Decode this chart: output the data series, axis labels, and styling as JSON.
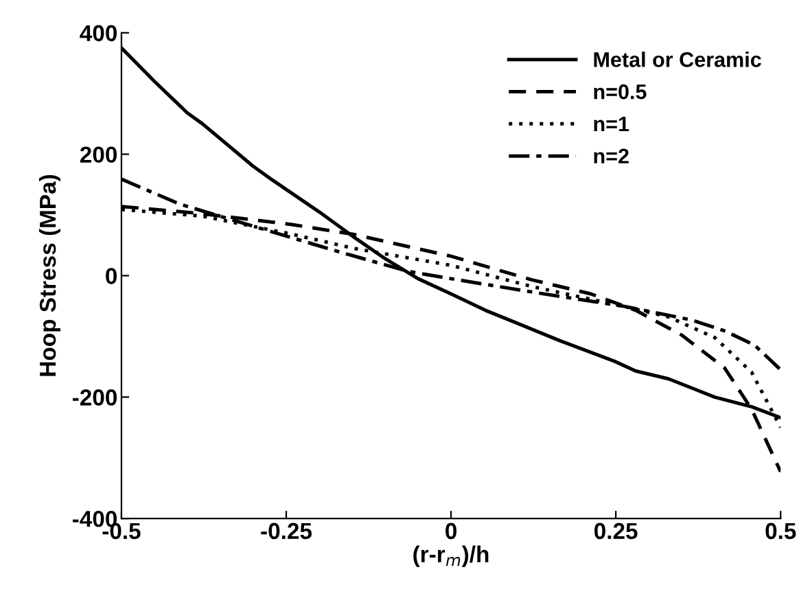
{
  "chart_data": {
    "type": "line",
    "xlabel": "(r-r$_{m}$)/h",
    "ylabel": "Hoop Stress (MPa)",
    "xlim": [
      -0.5,
      0.5
    ],
    "ylim": [
      -400,
      400
    ],
    "xticks": [
      -0.5,
      -0.25,
      0,
      0.25,
      0.5
    ],
    "yticks": [
      -400,
      -200,
      0,
      200,
      400
    ],
    "grid": false,
    "legend": "top right",
    "series": [
      {
        "name": "Metal or Ceramic",
        "color": "#000000",
        "line_style": "solid",
        "x": [
          -0.5,
          -0.45,
          -0.4,
          -0.377,
          -0.3,
          -0.273,
          -0.2,
          -0.148,
          -0.1,
          -0.05,
          0,
          0.052,
          0.165,
          0.248,
          0.28,
          0.33,
          0.4,
          0.456,
          0.5
        ],
        "values": [
          375,
          320,
          268,
          250,
          180,
          159,
          105,
          64,
          28,
          -5,
          -30,
          -57,
          -107,
          -141,
          -157,
          -170,
          -200,
          -216,
          -234
        ]
      },
      {
        "name": "n=0.5",
        "color": "#000000",
        "line_style": "dashed",
        "x": [
          -0.5,
          -0.377,
          -0.24,
          -0.148,
          0,
          0.123,
          0.212,
          0.28,
          0.35,
          0.415,
          0.456,
          0.5
        ],
        "values": [
          114,
          102,
          84,
          68,
          32,
          -7,
          -30,
          -57,
          -98,
          -152,
          -220,
          -323
        ]
      },
      {
        "name": "n=1",
        "color": "#000000",
        "line_style": "dotted",
        "x": [
          -0.5,
          -0.377,
          -0.24,
          -0.148,
          0,
          0.123,
          0.26,
          0.33,
          0.4,
          0.456,
          0.5
        ],
        "values": [
          109,
          98,
          68,
          45,
          17,
          -18,
          -50,
          -68,
          -102,
          -159,
          -250
        ]
      },
      {
        "name": "n=2",
        "color": "#000000",
        "line_style": "dashdot",
        "x": [
          -0.5,
          -0.412,
          -0.308,
          -0.169,
          -0.065,
          0,
          0.123,
          0.26,
          0.365,
          0.415,
          0.46,
          0.5
        ],
        "values": [
          159,
          118,
          84,
          39,
          7,
          -5,
          -27,
          -50,
          -73,
          -91,
          -114,
          -155
        ]
      }
    ]
  }
}
